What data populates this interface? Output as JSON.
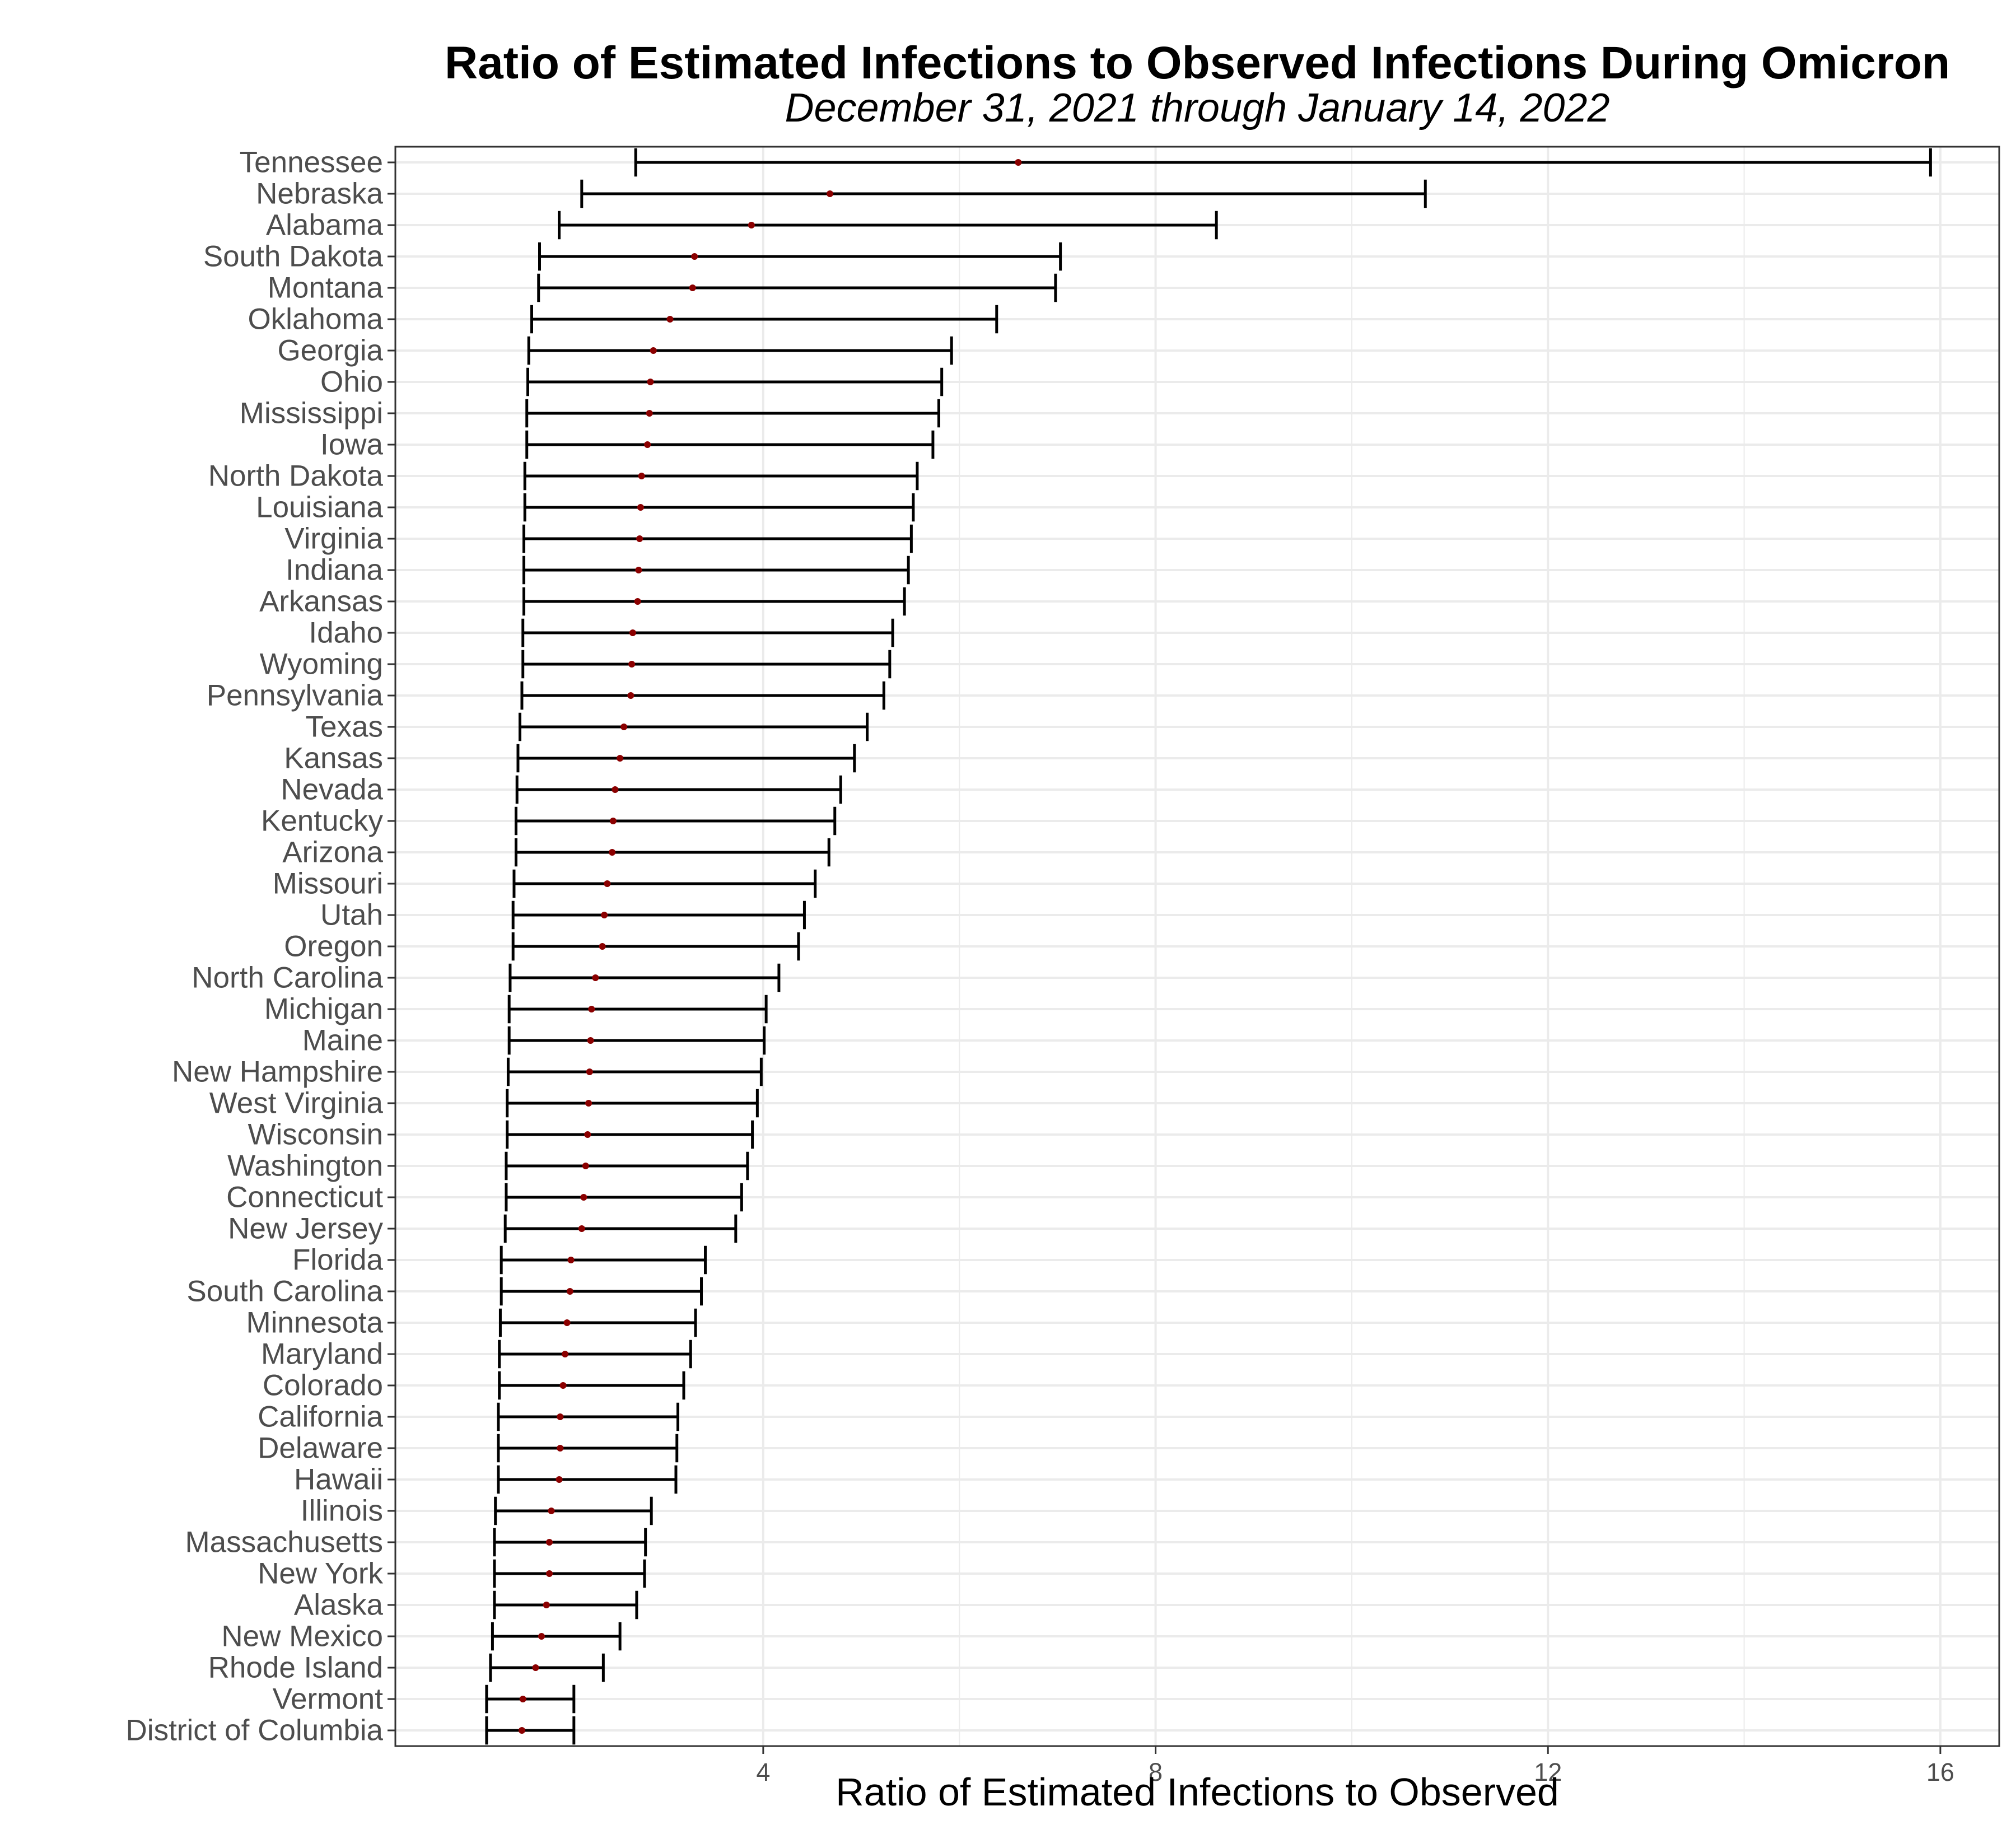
{
  "chart_data": {
    "type": "errorbar",
    "title": "Ratio of Estimated Infections to Observed Infections During Omicron",
    "subtitle": "December 31, 2021 through January 14, 2022",
    "xlabel": "Ratio of Estimated Infections to Observed",
    "ylabel": "",
    "xlim": [
      0.25,
      16.6
    ],
    "xticks": [
      4,
      8,
      12,
      16
    ],
    "grid": true,
    "colors": {
      "point": "#8b0000",
      "bar": "#000000",
      "grid": "#ebebeb",
      "panel_border": "#333333"
    },
    "series": [
      {
        "state": "Tennessee",
        "low": 2.7,
        "estimate": 6.6,
        "high": 15.9
      },
      {
        "state": "Nebraska",
        "low": 2.15,
        "estimate": 4.68,
        "high": 10.75
      },
      {
        "state": "Alabama",
        "low": 1.92,
        "estimate": 3.88,
        "high": 8.62
      },
      {
        "state": "South Dakota",
        "low": 1.72,
        "estimate": 3.3,
        "high": 7.03
      },
      {
        "state": "Montana",
        "low": 1.71,
        "estimate": 3.28,
        "high": 6.98
      },
      {
        "state": "Oklahoma",
        "low": 1.64,
        "estimate": 3.05,
        "high": 6.38
      },
      {
        "state": "Georgia",
        "low": 1.61,
        "estimate": 2.88,
        "high": 5.92
      },
      {
        "state": "Ohio",
        "low": 1.6,
        "estimate": 2.85,
        "high": 5.82
      },
      {
        "state": "Mississippi",
        "low": 1.59,
        "estimate": 2.84,
        "high": 5.79
      },
      {
        "state": "Iowa",
        "low": 1.59,
        "estimate": 2.82,
        "high": 5.73
      },
      {
        "state": "North Dakota",
        "low": 1.57,
        "estimate": 2.76,
        "high": 5.57
      },
      {
        "state": "Louisiana",
        "low": 1.57,
        "estimate": 2.75,
        "high": 5.53
      },
      {
        "state": "Virginia",
        "low": 1.56,
        "estimate": 2.74,
        "high": 5.51
      },
      {
        "state": "Indiana",
        "low": 1.56,
        "estimate": 2.73,
        "high": 5.48
      },
      {
        "state": "Arkansas",
        "low": 1.56,
        "estimate": 2.72,
        "high": 5.44
      },
      {
        "state": "Idaho",
        "low": 1.55,
        "estimate": 2.67,
        "high": 5.32
      },
      {
        "state": "Wyoming",
        "low": 1.55,
        "estimate": 2.66,
        "high": 5.29
      },
      {
        "state": "Pennsylvania",
        "low": 1.54,
        "estimate": 2.65,
        "high": 5.23
      },
      {
        "state": "Texas",
        "low": 1.52,
        "estimate": 2.58,
        "high": 5.06
      },
      {
        "state": "Kansas",
        "low": 1.5,
        "estimate": 2.54,
        "high": 4.93
      },
      {
        "state": "Nevada",
        "low": 1.49,
        "estimate": 2.49,
        "high": 4.79
      },
      {
        "state": "Kentucky",
        "low": 1.48,
        "estimate": 2.47,
        "high": 4.73
      },
      {
        "state": "Arizona",
        "low": 1.48,
        "estimate": 2.46,
        "high": 4.67
      },
      {
        "state": "Missouri",
        "low": 1.46,
        "estimate": 2.41,
        "high": 4.53
      },
      {
        "state": "Utah",
        "low": 1.45,
        "estimate": 2.38,
        "high": 4.42
      },
      {
        "state": "Oregon",
        "low": 1.45,
        "estimate": 2.36,
        "high": 4.36
      },
      {
        "state": "North Carolina",
        "low": 1.42,
        "estimate": 2.29,
        "high": 4.16
      },
      {
        "state": "Michigan",
        "low": 1.41,
        "estimate": 2.25,
        "high": 4.03
      },
      {
        "state": "Maine",
        "low": 1.41,
        "estimate": 2.24,
        "high": 4.01
      },
      {
        "state": "New Hampshire",
        "low": 1.4,
        "estimate": 2.23,
        "high": 3.98
      },
      {
        "state": "West Virginia",
        "low": 1.39,
        "estimate": 2.22,
        "high": 3.94
      },
      {
        "state": "Wisconsin",
        "low": 1.39,
        "estimate": 2.21,
        "high": 3.89
      },
      {
        "state": "Washington",
        "low": 1.38,
        "estimate": 2.19,
        "high": 3.84
      },
      {
        "state": "Connecticut",
        "low": 1.38,
        "estimate": 2.17,
        "high": 3.78
      },
      {
        "state": "New Jersey",
        "low": 1.37,
        "estimate": 2.15,
        "high": 3.72
      },
      {
        "state": "Florida",
        "low": 1.33,
        "estimate": 2.04,
        "high": 3.41
      },
      {
        "state": "South Carolina",
        "low": 1.33,
        "estimate": 2.03,
        "high": 3.37
      },
      {
        "state": "Minnesota",
        "low": 1.32,
        "estimate": 2.0,
        "high": 3.31
      },
      {
        "state": "Maryland",
        "low": 1.31,
        "estimate": 1.98,
        "high": 3.26
      },
      {
        "state": "Colorado",
        "low": 1.31,
        "estimate": 1.96,
        "high": 3.19
      },
      {
        "state": "California",
        "low": 1.3,
        "estimate": 1.93,
        "high": 3.13
      },
      {
        "state": "Delaware",
        "low": 1.3,
        "estimate": 1.93,
        "high": 3.12
      },
      {
        "state": "Hawaii",
        "low": 1.3,
        "estimate": 1.92,
        "high": 3.11
      },
      {
        "state": "Illinois",
        "low": 1.27,
        "estimate": 1.84,
        "high": 2.86
      },
      {
        "state": "Massachusetts",
        "low": 1.26,
        "estimate": 1.82,
        "high": 2.8
      },
      {
        "state": "New York",
        "low": 1.26,
        "estimate": 1.82,
        "high": 2.79
      },
      {
        "state": "Alaska",
        "low": 1.26,
        "estimate": 1.79,
        "high": 2.71
      },
      {
        "state": "New Mexico",
        "low": 1.24,
        "estimate": 1.74,
        "high": 2.54
      },
      {
        "state": "Rhode Island",
        "low": 1.22,
        "estimate": 1.68,
        "high": 2.37
      },
      {
        "state": "Vermont",
        "low": 1.18,
        "estimate": 1.55,
        "high": 2.07
      },
      {
        "state": "District of Columbia",
        "low": 1.18,
        "estimate": 1.54,
        "high": 2.07
      }
    ]
  }
}
